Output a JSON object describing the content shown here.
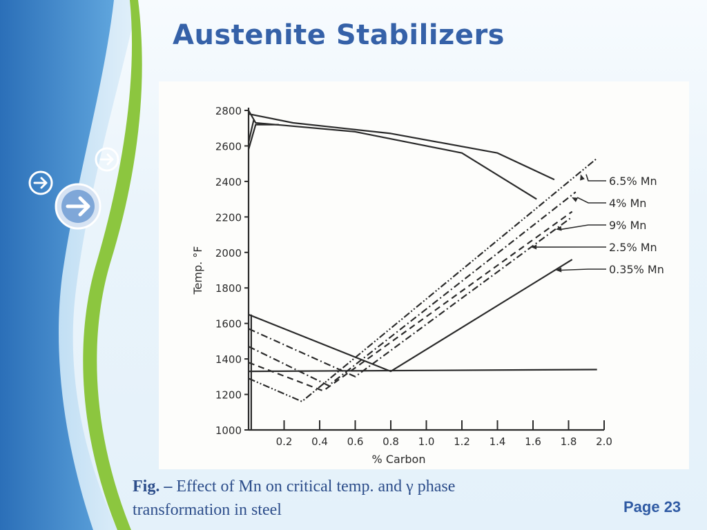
{
  "slide": {
    "title": "Austenite Stabilizers",
    "page_label": "Page 23",
    "caption_bold": "Fig. –",
    "caption_text": "Effect of Mn on critical temp. and γ phase transformation in steel",
    "accent_color": "#3561a8",
    "decor_icons": [
      "arrow-right-icon",
      "arrow-right-icon",
      "arrow-right-icon"
    ]
  },
  "chart_data": {
    "type": "line",
    "xlabel": "% Carbon",
    "ylabel": "Temp. °F",
    "xlim": [
      0,
      2.0
    ],
    "ylim": [
      1000,
      2800
    ],
    "x_ticks": [
      0.2,
      0.4,
      0.6,
      0.8,
      1.0,
      1.2,
      1.4,
      1.6,
      1.8,
      2.0
    ],
    "x_tick_labels": [
      "0.2",
      "0.4",
      "0.6",
      "0.8",
      "1.0",
      "1.2",
      "1.4",
      "1.6",
      "1.8",
      "2.0"
    ],
    "y_ticks": [
      1000,
      1200,
      1400,
      1600,
      1800,
      2000,
      2200,
      2400,
      2600,
      2800
    ],
    "y_tick_labels": [
      "1000",
      "1200",
      "1400",
      "1600",
      "1800",
      "2000",
      "2200",
      "2400",
      "2600",
      "2800"
    ],
    "grid": false,
    "legend_placement": "right",
    "series": [
      {
        "name": "6.5% Mn",
        "style": "dashdotdot",
        "x": [
          0,
          0.3,
          1.96
        ],
        "y": [
          1290,
          1160,
          2530
        ]
      },
      {
        "name": "4% Mn",
        "style": "dashdot",
        "x": [
          0,
          0.45,
          1.84
        ],
        "y": [
          1470,
          1250,
          2340
        ]
      },
      {
        "name": "9% Mn",
        "style": "dashed",
        "x": [
          0,
          0.42,
          1.82
        ],
        "y": [
          1380,
          1220,
          2230
        ]
      },
      {
        "name": "2.5% Mn",
        "style": "dashdot",
        "x": [
          0,
          0.6,
          1.82
        ],
        "y": [
          1570,
          1300,
          2200
        ]
      },
      {
        "name": "0.35% Mn",
        "style": "solid",
        "x": [
          0,
          0.8,
          1.82
        ],
        "y": [
          1650,
          1330,
          1960
        ]
      }
    ],
    "other_lines": [
      {
        "style": "solid",
        "x": [
          0,
          1.96
        ],
        "y": [
          1330,
          1340
        ]
      },
      {
        "style": "solid",
        "x": [
          0,
          0.04,
          0.6,
          1.2,
          1.62
        ],
        "y": [
          2800,
          2730,
          2680,
          2560,
          2300
        ]
      },
      {
        "style": "solid",
        "x": [
          0,
          0.25,
          0.8,
          1.4,
          1.72
        ],
        "y": [
          2780,
          2730,
          2670,
          2560,
          2410
        ]
      },
      {
        "style": "solid",
        "x": [
          0,
          0.04,
          0.17
        ],
        "y": [
          2580,
          2720,
          2720
        ]
      },
      {
        "style": "solid",
        "x": [
          0,
          0.03
        ],
        "y": [
          2620,
          2750
        ]
      },
      {
        "style": "solid",
        "x": [
          0.015,
          0.015
        ],
        "y": [
          1000,
          1650
        ]
      }
    ],
    "legend_arrows": [
      {
        "series": "6.5% Mn",
        "label": "6.5% Mn",
        "point": [
          1.86,
          2440
        ]
      },
      {
        "series": "4% Mn",
        "label": "4% Mn",
        "point": [
          1.81,
          2310
        ]
      },
      {
        "series": "9% Mn",
        "label": "9% Mn",
        "point": [
          1.72,
          2130
        ]
      },
      {
        "series": "2.5% Mn",
        "label": "2.5% Mn",
        "point": [
          1.58,
          2030
        ]
      },
      {
        "series": "0.35% Mn",
        "label": "0.35% Mn",
        "point": [
          1.72,
          1900
        ]
      }
    ]
  }
}
